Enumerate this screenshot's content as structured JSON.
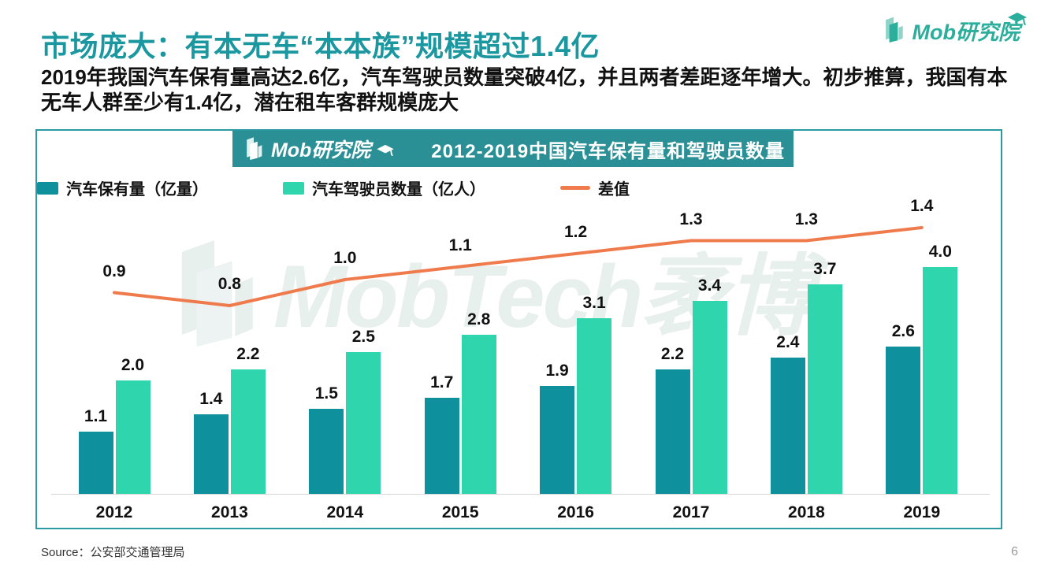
{
  "page": {
    "title": "市场庞大：有本无车“本本族”规模超过1.4亿",
    "subtitle": "2019年我国汽车保有量高达2.6亿，汽车驾驶员数量突破4亿，并且两者差距逐年增大。初步推算，我国有本无车人群至少有1.4亿，潜在租车客群规模庞大",
    "source": "Source：公安部交通管理局",
    "page_number": "6"
  },
  "brand": {
    "text": "Mob研究院"
  },
  "watermark": {
    "text": "MobTech袤博"
  },
  "chart": {
    "header_logo_text": "Mob研究院",
    "header_title": "2012-2019中国汽车保有量和驾驶员数量"
  },
  "chart_data": {
    "type": "bar",
    "title": "2012-2019中国汽车保有量和驾驶员数量",
    "categories": [
      "2012",
      "2013",
      "2014",
      "2015",
      "2016",
      "2017",
      "2018",
      "2019"
    ],
    "series": [
      {
        "name": "汽车保有量（亿量）",
        "type": "bar",
        "color": "#0E919D",
        "values": [
          1.1,
          1.4,
          1.5,
          1.7,
          1.9,
          2.2,
          2.4,
          2.6
        ]
      },
      {
        "name": "汽车驾驶员数量（亿人）",
        "type": "bar",
        "color": "#2FD6AD",
        "values": [
          2.0,
          2.2,
          2.5,
          2.8,
          3.1,
          3.4,
          3.7,
          4.0
        ]
      },
      {
        "name": "差值",
        "type": "line",
        "color": "#EF7B4D",
        "values": [
          0.9,
          0.8,
          1.0,
          1.1,
          1.2,
          1.3,
          1.3,
          1.4
        ]
      }
    ],
    "xlabel": "",
    "ylabel": "",
    "grid": false,
    "legend_position": "top",
    "value_labels": true
  },
  "colors": {
    "title_teal": "#1B97A0",
    "header_bar": "#2B8F96",
    "bar_ownership": "#0E919D",
    "bar_drivers": "#2FD6AD",
    "line_gap": "#EF7B4D",
    "chart_border": "#2B9AA3",
    "watermark": "#E8F0EE"
  }
}
